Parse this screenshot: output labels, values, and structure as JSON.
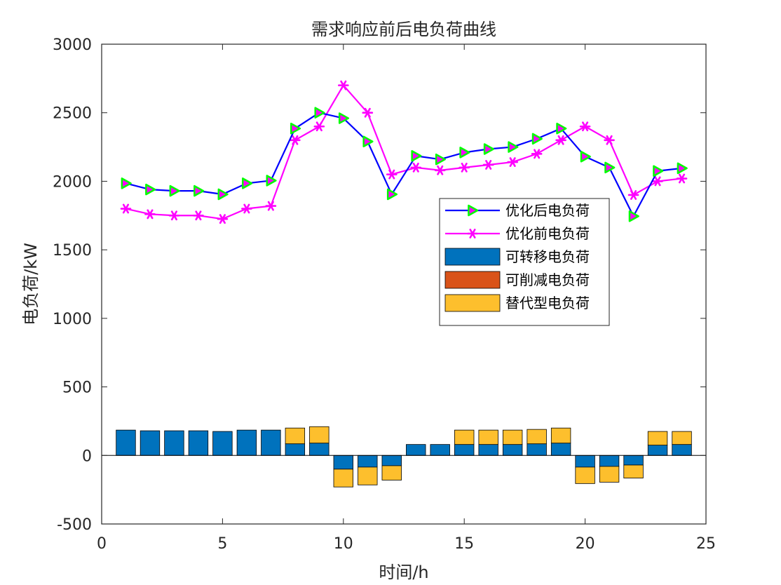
{
  "chart_data": {
    "type": "bar+line",
    "title": "需求响应前后电负荷曲线",
    "xlabel": "时间/h",
    "ylabel": "电负荷/kW",
    "xlim": [
      0,
      25
    ],
    "ylim": [
      -500,
      3000
    ],
    "xticks": [
      0,
      5,
      10,
      15,
      20,
      25
    ],
    "yticks": [
      -500,
      0,
      500,
      1000,
      1500,
      2000,
      2500,
      3000
    ],
    "grid": false,
    "legend_position": "middle-right",
    "x": [
      1,
      2,
      3,
      4,
      5,
      6,
      7,
      8,
      9,
      10,
      11,
      12,
      13,
      14,
      15,
      16,
      17,
      18,
      19,
      20,
      21,
      22,
      23,
      24
    ],
    "series": [
      {
        "name": "优化后电负荷",
        "kind": "line",
        "color": "#0000ff",
        "marker": "triangle-right",
        "marker_edge": "#00ff00",
        "marker_face": "#ff00ff",
        "values": [
          1985,
          1940,
          1930,
          1930,
          1905,
          1985,
          2005,
          2385,
          2500,
          2460,
          2290,
          1905,
          2185,
          2160,
          2210,
          2235,
          2250,
          2310,
          2385,
          2180,
          2100,
          1745,
          2075,
          2095
        ]
      },
      {
        "name": "优化前电负荷",
        "kind": "line",
        "color": "#ff00ff",
        "marker": "asterisk",
        "values": [
          1800,
          1760,
          1750,
          1750,
          1725,
          1800,
          1820,
          2300,
          2400,
          2700,
          2500,
          2050,
          2100,
          2080,
          2100,
          2120,
          2140,
          2200,
          2300,
          2400,
          2300,
          1900,
          2000,
          2020
        ]
      },
      {
        "name": "可转移电负荷",
        "kind": "bar",
        "color": "#0072bd",
        "values": [
          185,
          180,
          180,
          180,
          175,
          185,
          185,
          85,
          90,
          -100,
          -85,
          -75,
          80,
          80,
          80,
          80,
          80,
          85,
          90,
          -85,
          -80,
          -70,
          75,
          80
        ]
      },
      {
        "name": "可削减电负荷",
        "kind": "bar",
        "color": "#d95319",
        "values": [
          0,
          0,
          0,
          0,
          0,
          0,
          0,
          0,
          0,
          0,
          0,
          0,
          0,
          0,
          0,
          0,
          0,
          0,
          0,
          0,
          0,
          0,
          0,
          0
        ]
      },
      {
        "name": "替代型电负荷",
        "kind": "bar",
        "color": "#fdbf2d",
        "values": [
          0,
          0,
          0,
          0,
          0,
          0,
          0,
          115,
          120,
          -130,
          -130,
          -105,
          0,
          0,
          105,
          105,
          105,
          105,
          110,
          -120,
          -115,
          -95,
          100,
          95
        ]
      }
    ]
  }
}
